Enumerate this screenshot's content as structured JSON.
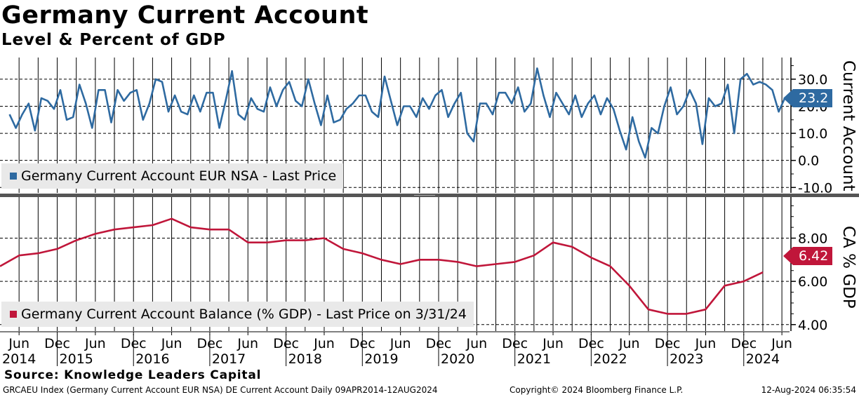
{
  "title": "Germany Current Account",
  "subtitle": "Level & Percent of GDP",
  "source": "Source: Knowledge Leaders Capital",
  "footer": {
    "left": "GRCAEU Index (Germany Current Account EUR NSA) DE Current Account  Daily 09APR2014-12AUG2024",
    "center": "Copyright© 2024 Bloomberg Finance L.P.",
    "right": "12-Aug-2024 06:35:54"
  },
  "colors": {
    "upper": "#2e6aa1",
    "lower": "#c0163a",
    "grid": "#000000"
  },
  "chart_data": [
    {
      "type": "line",
      "panel": "upper",
      "legend": "Germany Current Account EUR NSA - Last Price",
      "ylabel": "Current Account",
      "ylim": [
        -12,
        38
      ],
      "yticks": [
        30.0,
        20.0,
        10.0,
        0.0,
        -10.0
      ],
      "ytick_labels": [
        "30.0",
        "20.0",
        "10.0",
        "0.0",
        "-10.0"
      ],
      "last_value": 23.2,
      "last_label": "23.2",
      "x_start": 2014.375,
      "x_step": 0.08333,
      "values": [
        17,
        12,
        17,
        21,
        11,
        23,
        22,
        19,
        26,
        15,
        16,
        28,
        21,
        12,
        26,
        26,
        14,
        26,
        22,
        25,
        26,
        15,
        21,
        30,
        29,
        18,
        24,
        18,
        17,
        24,
        18,
        25,
        25,
        12,
        22,
        33,
        17,
        15,
        23,
        19,
        18,
        27,
        20,
        26,
        29,
        22,
        20,
        30,
        21,
        13,
        24,
        14,
        15,
        19,
        21,
        24,
        24,
        18,
        16,
        31,
        22,
        13,
        20,
        20,
        16,
        23,
        19,
        24,
        26,
        16,
        21,
        25,
        10,
        7,
        21,
        21,
        17,
        25,
        25,
        21,
        27,
        18,
        21,
        34,
        24,
        16,
        25,
        21,
        17,
        24,
        16,
        21,
        24,
        17,
        23,
        19,
        11,
        4,
        16,
        7,
        1,
        12,
        10,
        20,
        27,
        17,
        20,
        26,
        21,
        6,
        23,
        20,
        21,
        28,
        10,
        30,
        32,
        28,
        29,
        28,
        26,
        18,
        23.2
      ]
    },
    {
      "type": "line",
      "panel": "lower",
      "legend": "Germany Current Account Balance (% GDP) - Last Price on 3/31/24",
      "ylabel": "CA % GDP",
      "ylim": [
        3.7,
        9.9
      ],
      "yticks": [
        8.0,
        6.0,
        4.0
      ],
      "ytick_labels": [
        "8.00",
        "6.00",
        "4.00"
      ],
      "last_value": 6.42,
      "last_label": "6.42",
      "x": [
        2014.25,
        2014.5,
        2014.75,
        2015.0,
        2015.25,
        2015.5,
        2015.75,
        2016.0,
        2016.25,
        2016.5,
        2016.75,
        2017.0,
        2017.25,
        2017.5,
        2017.75,
        2018.0,
        2018.25,
        2018.5,
        2018.75,
        2019.0,
        2019.25,
        2019.5,
        2019.75,
        2020.0,
        2020.25,
        2020.5,
        2020.75,
        2021.0,
        2021.25,
        2021.5,
        2021.75,
        2022.0,
        2022.25,
        2022.5,
        2022.75,
        2023.0,
        2023.25,
        2023.5,
        2023.75,
        2024.0,
        2024.25
      ],
      "values": [
        6.7,
        7.2,
        7.3,
        7.5,
        7.9,
        8.2,
        8.4,
        8.5,
        8.6,
        8.9,
        8.5,
        8.4,
        8.4,
        7.8,
        7.8,
        7.9,
        7.9,
        8.0,
        7.5,
        7.3,
        7.0,
        6.8,
        7.0,
        7.0,
        6.9,
        6.7,
        6.8,
        6.9,
        7.2,
        7.8,
        7.6,
        7.1,
        6.7,
        5.8,
        4.7,
        4.5,
        4.5,
        4.7,
        5.8,
        6.0,
        6.42
      ]
    }
  ],
  "x_axis": {
    "tick_years": [
      2014.5,
      2015.0,
      2015.5,
      2016.0,
      2016.5,
      2017.0,
      2017.5,
      2018.0,
      2018.5,
      2019.0,
      2019.5,
      2020.0,
      2020.5,
      2021.0,
      2021.5,
      2022.0,
      2022.5,
      2023.0,
      2023.5,
      2024.0,
      2024.5
    ],
    "month_labels": [
      "Jun",
      "Dec",
      "Jun",
      "Dec",
      "Jun",
      "Dec",
      "Jun",
      "Dec",
      "Jun",
      "Dec",
      "Jun",
      "Dec",
      "Jun",
      "Dec",
      "Jun",
      "Dec",
      "Jun",
      "Dec",
      "Jun",
      "Dec",
      "Jun"
    ],
    "year_labels": [
      "2014",
      "2015",
      "2016",
      "2017",
      "2018",
      "2019",
      "2020",
      "2021",
      "2022",
      "2023",
      "2024"
    ],
    "year_label_pos": [
      2014.5,
      2015.25,
      2016.25,
      2017.25,
      2018.25,
      2019.25,
      2020.25,
      2021.25,
      2022.25,
      2023.25,
      2024.25
    ]
  }
}
